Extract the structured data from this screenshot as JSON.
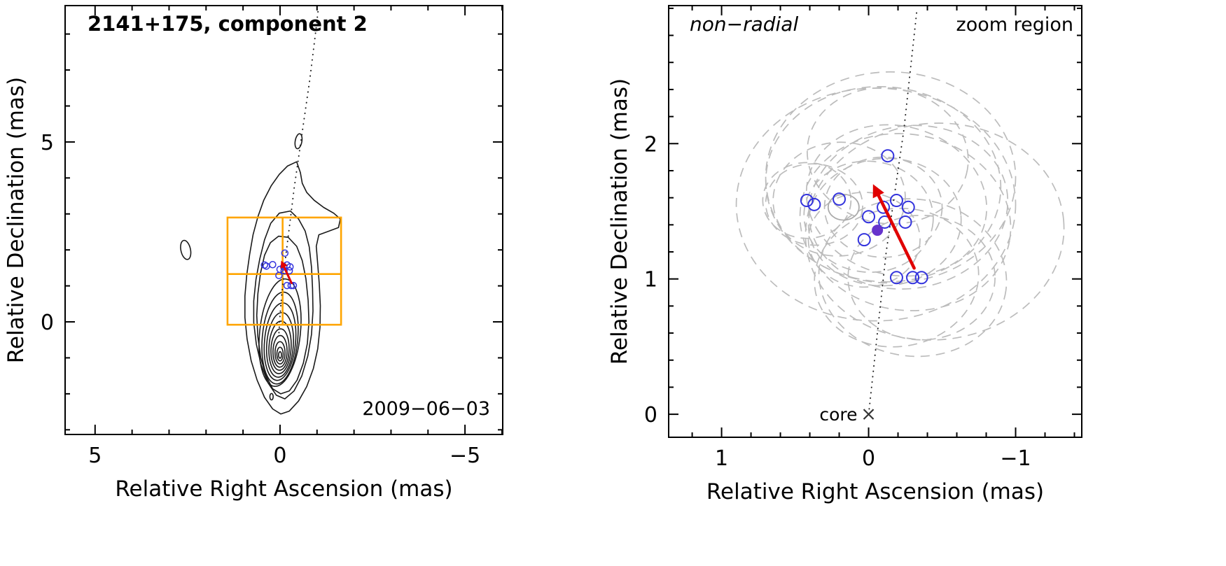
{
  "figure": {
    "background": "#ffffff"
  },
  "colors": {
    "frame": "#000000",
    "contour": "#1a1a1a",
    "zoom_box": "#ffa500",
    "component": "#3333dd",
    "mean_point": "#6633cc",
    "arrow": "#e00000",
    "beam_ellipse": "#bcbcbc",
    "solid_ellipse": "#aaaaaa",
    "trajectory": "#222222",
    "muted_text": "#555555",
    "core_text": "#444444"
  },
  "chart_data": [
    {
      "panel": "left",
      "type": "contour",
      "title": "2141+175, component 2",
      "epoch_label": "2009−06−03",
      "xlabel": "Relative Right Ascension (mas)",
      "ylabel": "Relative Declination (mas)",
      "xlim": [
        5.81,
        -6.02
      ],
      "ylim": [
        -3.13,
        8.79
      ],
      "xticks": [
        5,
        0,
        -5
      ],
      "xtick_labels": [
        "5",
        "0",
        "−5"
      ],
      "yticks": [
        0,
        5
      ],
      "ytick_labels": [
        "0",
        "5"
      ],
      "minor_step_x": 1,
      "minor_step_y": 1,
      "contour_outlines": [
        [
          [
            -0.45,
            4.45
          ],
          [
            -0.55,
            4.15
          ],
          [
            -0.6,
            3.85
          ],
          [
            -0.72,
            3.6
          ],
          [
            -0.92,
            3.38
          ],
          [
            -1.18,
            3.18
          ],
          [
            -1.45,
            3.02
          ],
          [
            -1.63,
            2.86
          ],
          [
            -1.58,
            2.62
          ],
          [
            -1.32,
            2.52
          ],
          [
            -1.05,
            2.42
          ],
          [
            -0.98,
            2.1
          ],
          [
            -1.02,
            1.6
          ],
          [
            -1.06,
            1.05
          ],
          [
            -1.09,
            0.45
          ],
          [
            -1.08,
            -0.15
          ],
          [
            -1.02,
            -0.75
          ],
          [
            -0.9,
            -1.3
          ],
          [
            -0.72,
            -1.8
          ],
          [
            -0.5,
            -2.2
          ],
          [
            -0.25,
            -2.48
          ],
          [
            -0.02,
            -2.56
          ],
          [
            0.2,
            -2.42
          ],
          [
            0.42,
            -2.1
          ],
          [
            0.62,
            -1.62
          ],
          [
            0.78,
            -1.08
          ],
          [
            0.89,
            -0.48
          ],
          [
            0.95,
            0.12
          ],
          [
            0.95,
            0.72
          ],
          [
            0.9,
            1.3
          ],
          [
            0.82,
            1.88
          ],
          [
            0.73,
            2.42
          ],
          [
            0.6,
            2.92
          ],
          [
            0.44,
            3.38
          ],
          [
            0.24,
            3.78
          ],
          [
            0.02,
            4.1
          ],
          [
            -0.2,
            4.33
          ]
        ],
        [
          [
            -0.28,
            3.08
          ],
          [
            -0.5,
            2.86
          ],
          [
            -0.68,
            2.52
          ],
          [
            -0.79,
            2.08
          ],
          [
            -0.85,
            1.52
          ],
          [
            -0.88,
            0.92
          ],
          [
            -0.89,
            0.3
          ],
          [
            -0.85,
            -0.35
          ],
          [
            -0.75,
            -0.95
          ],
          [
            -0.59,
            -1.5
          ],
          [
            -0.38,
            -1.92
          ],
          [
            -0.13,
            -2.14
          ],
          [
            0.1,
            -2.04
          ],
          [
            0.32,
            -1.7
          ],
          [
            0.51,
            -1.2
          ],
          [
            0.64,
            -0.62
          ],
          [
            0.71,
            -0.02
          ],
          [
            0.71,
            0.58
          ],
          [
            0.65,
            1.18
          ],
          [
            0.55,
            1.74
          ],
          [
            0.42,
            2.28
          ],
          [
            0.25,
            2.74
          ],
          [
            0.02,
            3.02
          ]
        ],
        [
          [
            -0.22,
            2.35
          ],
          [
            -0.45,
            2.1
          ],
          [
            -0.6,
            1.7
          ],
          [
            -0.7,
            1.2
          ],
          [
            -0.76,
            0.6
          ],
          [
            -0.78,
            0.0
          ],
          [
            -0.74,
            -0.6
          ],
          [
            -0.63,
            -1.15
          ],
          [
            -0.46,
            -1.62
          ],
          [
            -0.25,
            -1.92
          ],
          [
            -0.02,
            -2.0
          ],
          [
            0.2,
            -1.86
          ],
          [
            0.38,
            -1.5
          ],
          [
            0.52,
            -1.0
          ],
          [
            0.6,
            -0.42
          ],
          [
            0.63,
            0.18
          ],
          [
            0.6,
            0.78
          ],
          [
            0.53,
            1.35
          ],
          [
            0.42,
            1.85
          ],
          [
            0.26,
            2.2
          ],
          [
            0.04,
            2.38
          ]
        ]
      ],
      "contour_ellipses": [
        [
          0.0,
          -0.3,
          0.55,
          1.5,
          6
        ],
        [
          0.0,
          -0.45,
          0.48,
          1.28,
          5
        ],
        [
          0.0,
          -0.55,
          0.42,
          1.08,
          5
        ],
        [
          0.0,
          -0.64,
          0.36,
          0.9,
          4
        ],
        [
          0.0,
          -0.71,
          0.3,
          0.73,
          3
        ],
        [
          0.0,
          -0.77,
          0.245,
          0.575,
          2
        ],
        [
          0.0,
          -0.82,
          0.19,
          0.44,
          1
        ],
        [
          0.0,
          -0.86,
          0.135,
          0.31,
          0
        ],
        [
          0.0,
          -0.895,
          0.085,
          0.19,
          0
        ],
        [
          0.0,
          -0.92,
          0.04,
          0.09,
          0
        ]
      ],
      "detached_blobs": [
        [
          2.55,
          2.0,
          0.13,
          0.27,
          -12
        ],
        [
          -0.5,
          5.02,
          0.09,
          0.21,
          10
        ],
        [
          0.23,
          -2.08,
          0.045,
          0.09,
          0
        ]
      ],
      "zoom_box": {
        "ra_max": 1.42,
        "ra_min": -1.65,
        "dec_min": -0.08,
        "dec_max": 2.9,
        "cross_ra": -0.07,
        "cross_dec": 1.33
      },
      "trajectory": [
        [
          0.03,
          -0.3
        ],
        [
          0.0,
          0.2
        ],
        [
          -0.04,
          0.7
        ],
        [
          -0.09,
          1.2
        ],
        [
          -0.14,
          1.7
        ],
        [
          -0.2,
          2.2
        ],
        [
          -0.26,
          2.7
        ],
        [
          -0.32,
          3.2
        ],
        [
          -0.38,
          3.7
        ],
        [
          -0.45,
          4.2
        ],
        [
          -0.52,
          4.7
        ],
        [
          -0.59,
          5.2
        ],
        [
          -0.66,
          5.7
        ],
        [
          -0.73,
          6.2
        ],
        [
          -0.8,
          6.7
        ],
        [
          -0.86,
          7.2
        ],
        [
          -0.92,
          7.7
        ],
        [
          -0.98,
          8.2
        ],
        [
          -1.04,
          8.75
        ]
      ],
      "components": [
        [
          -0.13,
          1.91
        ],
        [
          0.2,
          1.59
        ],
        [
          0.42,
          1.58
        ],
        [
          0.37,
          1.55
        ],
        [
          -0.19,
          1.58
        ],
        [
          -0.1,
          1.53
        ],
        [
          -0.27,
          1.53
        ],
        [
          0.0,
          1.46
        ],
        [
          -0.11,
          1.42
        ],
        [
          -0.25,
          1.42
        ],
        [
          0.03,
          1.29
        ],
        [
          -0.19,
          1.01
        ],
        [
          -0.3,
          1.01
        ],
        [
          -0.36,
          1.01
        ]
      ],
      "arrow": {
        "from": [
          -0.31,
          1.08
        ],
        "to": [
          -0.03,
          1.7
        ]
      }
    },
    {
      "panel": "right",
      "type": "scatter",
      "corner_label_left": "non−radial",
      "corner_label_right": "zoom region",
      "xlabel": "Relative Right Ascension (mas)",
      "ylabel": "Relative Declination (mas)",
      "xlim": [
        1.36,
        -1.45
      ],
      "ylim": [
        -0.17,
        3.02
      ],
      "xticks": [
        1,
        0,
        -1
      ],
      "xtick_labels": [
        "1",
        "0",
        "−1"
      ],
      "yticks": [
        0,
        1,
        2
      ],
      "ytick_labels": [
        "0",
        "1",
        "2"
      ],
      "minor_step_x": 0.2,
      "minor_step_y": 0.2,
      "beam_ellipses": [
        [
          -0.13,
          1.91,
          0.55,
          0.5,
          10
        ],
        [
          0.2,
          1.59,
          0.45,
          0.42,
          -5
        ],
        [
          0.42,
          1.58,
          0.3,
          0.28,
          0
        ],
        [
          0.37,
          1.55,
          0.33,
          0.3,
          5
        ],
        [
          -0.19,
          1.58,
          0.62,
          0.55,
          15
        ],
        [
          -0.1,
          1.53,
          0.4,
          0.37,
          0
        ],
        [
          -0.27,
          1.53,
          0.68,
          0.6,
          -10
        ],
        [
          0.0,
          1.46,
          0.44,
          0.41,
          5
        ],
        [
          -0.11,
          1.42,
          0.52,
          0.47,
          -5
        ],
        [
          -0.25,
          1.42,
          0.72,
          0.65,
          10
        ],
        [
          0.03,
          1.29,
          0.38,
          0.35,
          0
        ],
        [
          -0.19,
          1.01,
          0.56,
          0.51,
          -8
        ],
        [
          -0.3,
          1.01,
          0.64,
          0.58,
          8
        ],
        [
          -0.36,
          1.01,
          0.5,
          0.46,
          0
        ],
        [
          -0.1,
          1.7,
          0.8,
          0.72,
          5
        ],
        [
          -0.45,
          1.35,
          0.88,
          0.8,
          -5
        ],
        [
          -0.05,
          1.55,
          0.95,
          0.86,
          0
        ],
        [
          -0.15,
          1.75,
          0.85,
          0.78,
          0
        ]
      ],
      "solid_ellipse": [
        0.17,
        1.53,
        0.105,
        0.095,
        0
      ],
      "trajectory": [
        [
          0.0,
          0.0
        ],
        [
          -0.03,
          0.3
        ],
        [
          -0.06,
          0.6
        ],
        [
          -0.09,
          0.9
        ],
        [
          -0.12,
          1.2
        ],
        [
          -0.16,
          1.5
        ],
        [
          -0.2,
          1.8
        ],
        [
          -0.24,
          2.1
        ],
        [
          -0.27,
          2.4
        ],
        [
          -0.3,
          2.7
        ],
        [
          -0.33,
          3.0
        ]
      ],
      "components": [
        [
          -0.13,
          1.91
        ],
        [
          0.2,
          1.59
        ],
        [
          0.42,
          1.58
        ],
        [
          0.37,
          1.55
        ],
        [
          -0.19,
          1.58
        ],
        [
          -0.1,
          1.53
        ],
        [
          -0.27,
          1.53
        ],
        [
          0.0,
          1.46
        ],
        [
          -0.11,
          1.42
        ],
        [
          -0.25,
          1.42
        ],
        [
          0.03,
          1.29
        ],
        [
          -0.19,
          1.01
        ],
        [
          -0.3,
          1.01
        ],
        [
          -0.36,
          1.01
        ]
      ],
      "mean_point": [
        -0.06,
        1.36
      ],
      "arrow": {
        "from": [
          -0.31,
          1.08
        ],
        "to": [
          -0.03,
          1.7
        ]
      },
      "core": {
        "label": "core",
        "ra": 0,
        "dec": 0
      }
    }
  ]
}
